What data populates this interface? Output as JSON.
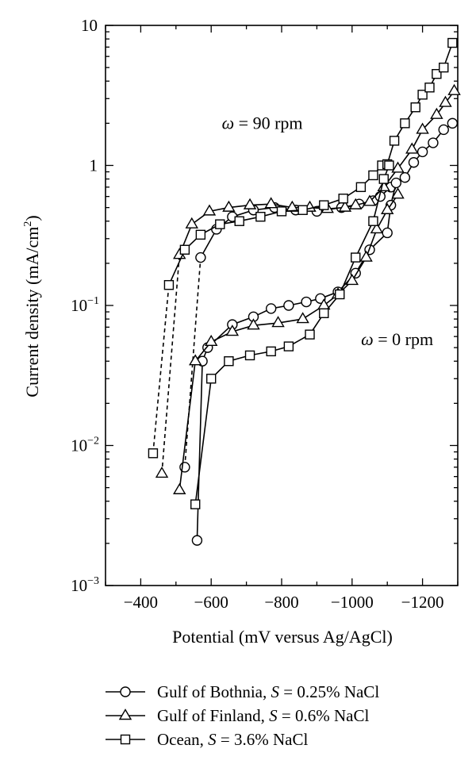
{
  "chart_data": {
    "type": "line",
    "x_axis": {
      "label": "Potential (mV versus Ag/AgCl)",
      "range": [
        -300,
        -1300
      ],
      "ticks": [
        -400,
        -600,
        -800,
        -1000,
        -1200
      ],
      "tick_labels": [
        "−400",
        "−600",
        "−800",
        "−1000",
        "−1200"
      ]
    },
    "y_axis": {
      "label_main": "Current density (mA/cm",
      "label_sup": "2",
      "label_close": ")",
      "scale": "log",
      "range": [
        0.001,
        10
      ],
      "ticks": [
        {
          "value": 10,
          "base": "10",
          "exp": ""
        },
        {
          "value": 1,
          "base": "1",
          "exp": ""
        },
        {
          "value": 0.1,
          "base": "10",
          "exp": "−1"
        },
        {
          "value": 0.01,
          "base": "10",
          "exp": "−2"
        },
        {
          "value": 0.001,
          "base": "10",
          "exp": "−3"
        }
      ]
    },
    "annotations": [
      {
        "id": "ann-90rpm",
        "symbol": "ω",
        "text": " = 90 rpm",
        "x": -745,
        "y": 2.0
      },
      {
        "id": "ann-0rpm",
        "symbol": "ω",
        "text": " = 0 rpm",
        "x": -1128,
        "y": 0.057
      }
    ],
    "legend": {
      "placement": "bottom",
      "entries": [
        {
          "series": "bothnia",
          "name": "Gulf of Bothnia, ",
          "var": "S",
          "rest": " = 0.25% NaCl",
          "marker": "circle"
        },
        {
          "series": "finland",
          "name": "Gulf of Finland, ",
          "var": "S",
          "rest": " = 0.6% NaCl",
          "marker": "triangle"
        },
        {
          "series": "ocean",
          "name": "Ocean, ",
          "var": "S",
          "rest": " = 3.6% NaCl",
          "marker": "square"
        }
      ]
    },
    "series": [
      {
        "id": "bothnia-90",
        "marker": "circle",
        "dashed_until": 1,
        "points": [
          [
            -525,
            0.007
          ],
          [
            -570,
            0.22
          ],
          [
            -615,
            0.35
          ],
          [
            -660,
            0.43
          ],
          [
            -720,
            0.48
          ],
          [
            -780,
            0.5
          ],
          [
            -840,
            0.48
          ],
          [
            -900,
            0.47
          ],
          [
            -970,
            0.5
          ],
          [
            -1020,
            0.53
          ],
          [
            -1060,
            0.56
          ],
          [
            -1080,
            0.6
          ],
          [
            -1110,
            0.7
          ],
          [
            -1150,
            0.82
          ],
          [
            -1175,
            1.05
          ],
          [
            -1200,
            1.25
          ],
          [
            -1230,
            1.45
          ],
          [
            -1260,
            1.8
          ],
          [
            -1285,
            2.0
          ]
        ]
      },
      {
        "id": "bothnia-0",
        "marker": "circle",
        "dashed_until": 0,
        "points": [
          [
            -560,
            0.0021
          ],
          [
            -575,
            0.04
          ],
          [
            -590,
            0.05
          ],
          [
            -660,
            0.073
          ],
          [
            -720,
            0.083
          ],
          [
            -770,
            0.095
          ],
          [
            -820,
            0.1
          ],
          [
            -870,
            0.106
          ],
          [
            -910,
            0.112
          ],
          [
            -960,
            0.125
          ],
          [
            -1010,
            0.17
          ],
          [
            -1050,
            0.25
          ],
          [
            -1100,
            0.33
          ],
          [
            -1110,
            0.52
          ],
          [
            -1125,
            0.75
          ]
        ]
      },
      {
        "id": "finland-90",
        "marker": "triangle",
        "dashed_until": 1,
        "points": [
          [
            -460,
            0.0063
          ],
          [
            -510,
            0.23
          ],
          [
            -545,
            0.38
          ],
          [
            -595,
            0.47
          ],
          [
            -650,
            0.5
          ],
          [
            -710,
            0.52
          ],
          [
            -770,
            0.53
          ],
          [
            -830,
            0.5
          ],
          [
            -880,
            0.5
          ],
          [
            -930,
            0.49
          ],
          [
            -980,
            0.5
          ],
          [
            -1010,
            0.52
          ],
          [
            -1050,
            0.55
          ],
          [
            -1090,
            0.7
          ],
          [
            -1130,
            0.95
          ],
          [
            -1170,
            1.3
          ],
          [
            -1200,
            1.8
          ],
          [
            -1240,
            2.3
          ],
          [
            -1265,
            2.8
          ],
          [
            -1290,
            3.4
          ]
        ]
      },
      {
        "id": "finland-0",
        "marker": "triangle",
        "dashed_until": 0,
        "points": [
          [
            -510,
            0.0048
          ],
          [
            -555,
            0.04
          ],
          [
            -600,
            0.055
          ],
          [
            -660,
            0.065
          ],
          [
            -720,
            0.072
          ],
          [
            -790,
            0.075
          ],
          [
            -860,
            0.08
          ],
          [
            -920,
            0.1
          ],
          [
            -960,
            0.12
          ],
          [
            -1000,
            0.15
          ],
          [
            -1040,
            0.22
          ],
          [
            -1070,
            0.35
          ],
          [
            -1100,
            0.48
          ],
          [
            -1130,
            0.62
          ]
        ]
      },
      {
        "id": "ocean-90",
        "marker": "square",
        "dashed_until": 1,
        "points": [
          [
            -435,
            0.0088
          ],
          [
            -480,
            0.14
          ],
          [
            -525,
            0.25
          ],
          [
            -570,
            0.32
          ],
          [
            -625,
            0.38
          ],
          [
            -680,
            0.4
          ],
          [
            -740,
            0.43
          ],
          [
            -800,
            0.47
          ],
          [
            -860,
            0.48
          ],
          [
            -920,
            0.52
          ],
          [
            -975,
            0.58
          ],
          [
            -1025,
            0.7
          ],
          [
            -1060,
            0.85
          ],
          [
            -1085,
            1.0
          ],
          [
            -1100,
            1.02
          ],
          [
            -1120,
            1.5
          ],
          [
            -1150,
            2.0
          ],
          [
            -1180,
            2.6
          ],
          [
            -1200,
            3.2
          ],
          [
            -1220,
            3.6
          ],
          [
            -1240,
            4.5
          ],
          [
            -1260,
            5.0
          ],
          [
            -1285,
            7.5
          ]
        ]
      },
      {
        "id": "ocean-0",
        "marker": "square",
        "dashed_until": 0,
        "points": [
          [
            -555,
            0.0038
          ],
          [
            -600,
            0.03
          ],
          [
            -650,
            0.04
          ],
          [
            -710,
            0.044
          ],
          [
            -770,
            0.047
          ],
          [
            -820,
            0.051
          ],
          [
            -880,
            0.062
          ],
          [
            -920,
            0.088
          ],
          [
            -965,
            0.12
          ],
          [
            -1010,
            0.22
          ],
          [
            -1060,
            0.4
          ],
          [
            -1090,
            0.8
          ],
          [
            -1105,
            1.0
          ]
        ]
      }
    ]
  }
}
